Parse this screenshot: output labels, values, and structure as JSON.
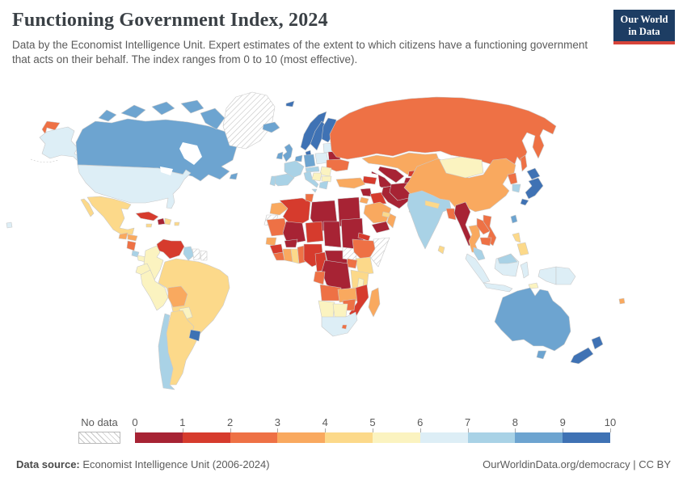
{
  "header": {
    "title": "Functioning Government Index, 2024",
    "subtitle": "Data by the Economist Intelligence Unit. Expert estimates of the extent to which citizens have a functioning government that acts on their behalf. The index ranges from 0 to 10 (most effective).",
    "logo": {
      "line1": "Our World",
      "line2": "in Data"
    }
  },
  "footer": {
    "source_label": "Data source:",
    "source_text": " Economist Intelligence Unit (2006-2024)",
    "right_text": "OurWorldinData.org/democracy | CC BY"
  },
  "chart_data": {
    "type": "heatmap",
    "subtype": "world-choropleth-map",
    "title": "Functioning Government Index, 2024",
    "value_range": [
      0,
      10
    ],
    "legend_position": "bottom",
    "no_data_label": "No data",
    "tick_labels": [
      "0",
      "1",
      "2",
      "3",
      "4",
      "5",
      "6",
      "7",
      "8",
      "9",
      "10"
    ],
    "color_scale": {
      "bins": [
        {
          "range": "0-1",
          "color": "#a72334"
        },
        {
          "range": "1-2",
          "color": "#d63b2d"
        },
        {
          "range": "2-3",
          "color": "#ee7145"
        },
        {
          "range": "3-4",
          "color": "#f9a95f"
        },
        {
          "range": "4-5",
          "color": "#fcd98a"
        },
        {
          "range": "5-6",
          "color": "#fbf3c0"
        },
        {
          "range": "6-7",
          "color": "#ddeef6"
        },
        {
          "range": "7-8",
          "color": "#a9d2e6"
        },
        {
          "range": "8-9",
          "color": "#6da4d0"
        },
        {
          "range": "9-10",
          "color": "#3f72b4"
        }
      ]
    },
    "regions": [
      {
        "id": "canada",
        "label": "Canada",
        "bin": "8-9"
      },
      {
        "id": "united-states",
        "label": "United States",
        "bin": "6-7"
      },
      {
        "id": "greenland",
        "label": "Greenland",
        "bin": "no-data"
      },
      {
        "id": "mexico",
        "label": "Mexico",
        "bin": "4-5"
      },
      {
        "id": "guatemala",
        "label": "Guatemala",
        "bin": "3-4"
      },
      {
        "id": "honduras",
        "label": "Honduras",
        "bin": "3-4"
      },
      {
        "id": "nicaragua",
        "label": "Nicaragua",
        "bin": "2-3"
      },
      {
        "id": "costa-rica",
        "label": "Costa Rica",
        "bin": "7-8"
      },
      {
        "id": "panama",
        "label": "Panama",
        "bin": "5-6"
      },
      {
        "id": "cuba",
        "label": "Cuba",
        "bin": "1-2"
      },
      {
        "id": "jamaica",
        "label": "Jamaica",
        "bin": "4-5"
      },
      {
        "id": "haiti",
        "label": "Haiti",
        "bin": "0-1"
      },
      {
        "id": "dominican-republic",
        "label": "Dominican Republic",
        "bin": "4-5"
      },
      {
        "id": "puerto-rico",
        "label": "Puerto Rico",
        "bin": "4-5"
      },
      {
        "id": "venezuela",
        "label": "Venezuela",
        "bin": "1-2"
      },
      {
        "id": "colombia",
        "label": "Colombia",
        "bin": "5-6"
      },
      {
        "id": "guyana",
        "label": "Guyana",
        "bin": "7-8"
      },
      {
        "id": "suriname",
        "label": "Suriname",
        "bin": "no-data"
      },
      {
        "id": "french-guiana",
        "label": "French Guiana",
        "bin": "no-data"
      },
      {
        "id": "ecuador",
        "label": "Ecuador",
        "bin": "5-6"
      },
      {
        "id": "peru",
        "label": "Peru",
        "bin": "5-6"
      },
      {
        "id": "brazil",
        "label": "Brazil",
        "bin": "4-5"
      },
      {
        "id": "bolivia",
        "label": "Bolivia",
        "bin": "3-4"
      },
      {
        "id": "paraguay",
        "label": "Paraguay",
        "bin": "5-6"
      },
      {
        "id": "uruguay",
        "label": "Uruguay",
        "bin": "9-10"
      },
      {
        "id": "argentina",
        "label": "Argentina",
        "bin": "4-5"
      },
      {
        "id": "chile",
        "label": "Chile",
        "bin": "7-8"
      },
      {
        "id": "iceland",
        "label": "Iceland",
        "bin": "8-9"
      },
      {
        "id": "norway",
        "label": "Norway",
        "bin": "9-10"
      },
      {
        "id": "sweden",
        "label": "Sweden",
        "bin": "9-10"
      },
      {
        "id": "finland",
        "label": "Finland",
        "bin": "9-10"
      },
      {
        "id": "svalbard",
        "label": "Svalbard",
        "bin": "9-10"
      },
      {
        "id": "denmark",
        "label": "Denmark",
        "bin": "9-10"
      },
      {
        "id": "united-kingdom",
        "label": "United Kingdom",
        "bin": "8-9"
      },
      {
        "id": "ireland",
        "label": "Ireland",
        "bin": "8-9"
      },
      {
        "id": "benelux",
        "label": "Netherlands / Belgium",
        "bin": "8-9"
      },
      {
        "id": "germany",
        "label": "Germany",
        "bin": "8-9"
      },
      {
        "id": "france",
        "label": "France",
        "bin": "7-8"
      },
      {
        "id": "spain",
        "label": "Spain",
        "bin": "7-8"
      },
      {
        "id": "portugal",
        "label": "Portugal",
        "bin": "7-8"
      },
      {
        "id": "alpine-central-europe",
        "label": "Switzerland / Austria",
        "bin": "7-8"
      },
      {
        "id": "italy",
        "label": "Italy",
        "bin": "7-8"
      },
      {
        "id": "poland",
        "label": "Poland",
        "bin": "6-7"
      },
      {
        "id": "baltics",
        "label": "Baltic states",
        "bin": "6-7"
      },
      {
        "id": "belarus",
        "label": "Belarus",
        "bin": "0-1"
      },
      {
        "id": "ukraine",
        "label": "Ukraine",
        "bin": "2-3"
      },
      {
        "id": "romania-moldova",
        "label": "Romania / Moldova",
        "bin": "5-6"
      },
      {
        "id": "balkans",
        "label": "Western Balkans",
        "bin": "5-6"
      },
      {
        "id": "bulgaria",
        "label": "Bulgaria",
        "bin": "5-6"
      },
      {
        "id": "greece",
        "label": "Greece",
        "bin": "7-8"
      },
      {
        "id": "russia",
        "label": "Russia",
        "bin": "2-3"
      },
      {
        "id": "kazakhstan",
        "label": "Kazakhstan",
        "bin": "3-4"
      },
      {
        "id": "uzbekistan",
        "label": "Uzbekistan",
        "bin": "0-1"
      },
      {
        "id": "turkmenistan",
        "label": "Turkmenistan",
        "bin": "0-1"
      },
      {
        "id": "kyrgyzstan",
        "label": "Kyrgyzstan",
        "bin": "1-2"
      },
      {
        "id": "tajikistan",
        "label": "Tajikistan",
        "bin": "0-1"
      },
      {
        "id": "afghanistan",
        "label": "Afghanistan",
        "bin": "0-1"
      },
      {
        "id": "pakistan",
        "label": "Pakistan",
        "bin": "4-5"
      },
      {
        "id": "caucasus",
        "label": "Caucasus states",
        "bin": "1-2"
      },
      {
        "id": "turkey",
        "label": "Turkey",
        "bin": "3-4"
      },
      {
        "id": "syria",
        "label": "Syria",
        "bin": "0-1"
      },
      {
        "id": "iraq",
        "label": "Iraq",
        "bin": "1-2"
      },
      {
        "id": "iran",
        "label": "Iran",
        "bin": "0-1"
      },
      {
        "id": "jordan",
        "label": "Jordan",
        "bin": "3-4"
      },
      {
        "id": "saudi-arabia",
        "label": "Saudi Arabia",
        "bin": "3-4"
      },
      {
        "id": "yemen",
        "label": "Yemen",
        "bin": "0-1"
      },
      {
        "id": "oman",
        "label": "Oman",
        "bin": "3-4"
      },
      {
        "id": "uae-qatar",
        "label": "UAE / Qatar",
        "bin": "4-5"
      },
      {
        "id": "china",
        "label": "China",
        "bin": "3-4"
      },
      {
        "id": "mongolia",
        "label": "Mongolia",
        "bin": "5-6"
      },
      {
        "id": "north-korea",
        "label": "North Korea",
        "bin": "2-3"
      },
      {
        "id": "south-korea",
        "label": "South Korea",
        "bin": "7-8"
      },
      {
        "id": "japan",
        "label": "Japan",
        "bin": "9-10"
      },
      {
        "id": "taiwan",
        "label": "Taiwan",
        "bin": "8-9"
      },
      {
        "id": "india",
        "label": "India",
        "bin": "7-8"
      },
      {
        "id": "nepal",
        "label": "Nepal",
        "bin": "4-5"
      },
      {
        "id": "bangladesh",
        "label": "Bangladesh",
        "bin": "2-3"
      },
      {
        "id": "sri-lanka",
        "label": "Sri Lanka",
        "bin": "4-5"
      },
      {
        "id": "myanmar",
        "label": "Myanmar",
        "bin": "0-1"
      },
      {
        "id": "thailand",
        "label": "Thailand",
        "bin": "3-4"
      },
      {
        "id": "laos",
        "label": "Laos",
        "bin": "2-3"
      },
      {
        "id": "vietnam",
        "label": "Vietnam",
        "bin": "2-3"
      },
      {
        "id": "cambodia",
        "label": "Cambodia",
        "bin": "2-3"
      },
      {
        "id": "malaysia",
        "label": "Malaysia",
        "bin": "7-8"
      },
      {
        "id": "indonesia",
        "label": "Indonesia",
        "bin": "6-7"
      },
      {
        "id": "timor-leste",
        "label": "Timor-Leste",
        "bin": "5-6"
      },
      {
        "id": "philippines",
        "label": "Philippines",
        "bin": "4-5"
      },
      {
        "id": "papua-new-guinea",
        "label": "Papua New Guinea",
        "bin": "6-7"
      },
      {
        "id": "australia",
        "label": "Australia",
        "bin": "8-9"
      },
      {
        "id": "new-zealand",
        "label": "New Zealand",
        "bin": "9-10"
      },
      {
        "id": "fiji",
        "label": "Fiji",
        "bin": "3-4"
      },
      {
        "id": "morocco",
        "label": "Morocco",
        "bin": "3-4"
      },
      {
        "id": "western-sahara",
        "label": "Western Sahara",
        "bin": "no-data"
      },
      {
        "id": "algeria",
        "label": "Algeria",
        "bin": "1-2"
      },
      {
        "id": "tunisia",
        "label": "Tunisia",
        "bin": "2-3"
      },
      {
        "id": "libya",
        "label": "Libya",
        "bin": "0-1"
      },
      {
        "id": "egypt",
        "label": "Egypt",
        "bin": "0-1"
      },
      {
        "id": "mauritania",
        "label": "Mauritania",
        "bin": "2-3"
      },
      {
        "id": "mali",
        "label": "Mali",
        "bin": "0-1"
      },
      {
        "id": "niger",
        "label": "Niger",
        "bin": "1-2"
      },
      {
        "id": "chad",
        "label": "Chad",
        "bin": "0-1"
      },
      {
        "id": "sudan",
        "label": "Sudan",
        "bin": "0-1"
      },
      {
        "id": "eritrea",
        "label": "Eritrea",
        "bin": "1-2"
      },
      {
        "id": "senegal",
        "label": "Senegal",
        "bin": "3-4"
      },
      {
        "id": "guinea",
        "label": "Guinea",
        "bin": "1-2"
      },
      {
        "id": "sierra-leone-liberia",
        "label": "Sierra Leone / Liberia",
        "bin": "2-3"
      },
      {
        "id": "ivory-coast",
        "label": "Côte d'Ivoire",
        "bin": "3-4"
      },
      {
        "id": "burkina-faso",
        "label": "Burkina Faso",
        "bin": "0-1"
      },
      {
        "id": "ghana",
        "label": "Ghana",
        "bin": "4-5"
      },
      {
        "id": "togo-benin",
        "label": "Togo / Benin",
        "bin": "2-3"
      },
      {
        "id": "nigeria",
        "label": "Nigeria",
        "bin": "1-2"
      },
      {
        "id": "cameroon",
        "label": "Cameroon",
        "bin": "1-2"
      },
      {
        "id": "central-african-republic",
        "label": "Central African Republic",
        "bin": "0-1"
      },
      {
        "id": "south-sudan",
        "label": "South Sudan",
        "bin": "no-data"
      },
      {
        "id": "ethiopia",
        "label": "Ethiopia",
        "bin": "2-3"
      },
      {
        "id": "somalia",
        "label": "Somalia",
        "bin": "no-data"
      },
      {
        "id": "kenya",
        "label": "Kenya",
        "bin": "4-5"
      },
      {
        "id": "uganda",
        "label": "Uganda",
        "bin": "2-3"
      },
      {
        "id": "democratic-republic-of-congo",
        "label": "Democratic Republic of Congo",
        "bin": "0-1"
      },
      {
        "id": "congo-gabon",
        "label": "Congo / Gabon",
        "bin": "2-3"
      },
      {
        "id": "tanzania",
        "label": "Tanzania",
        "bin": "4-5"
      },
      {
        "id": "angola",
        "label": "Angola",
        "bin": "2-3"
      },
      {
        "id": "zambia",
        "label": "Zambia",
        "bin": "3-4"
      },
      {
        "id": "malawi",
        "label": "Malawi",
        "bin": "5-6"
      },
      {
        "id": "mozambique",
        "label": "Mozambique",
        "bin": "1-2"
      },
      {
        "id": "zimbabwe",
        "label": "Zimbabwe",
        "bin": "2-3"
      },
      {
        "id": "madagascar",
        "label": "Madagascar",
        "bin": "3-4"
      },
      {
        "id": "namibia",
        "label": "Namibia",
        "bin": "5-6"
      },
      {
        "id": "botswana",
        "label": "Botswana",
        "bin": "5-6"
      },
      {
        "id": "south-africa",
        "label": "South Africa",
        "bin": "6-7"
      },
      {
        "id": "lesotho",
        "label": "Lesotho",
        "bin": "2-3"
      }
    ]
  },
  "map_style": {
    "ocean_color": "#ffffff",
    "border_color": "#c9c9c9",
    "no_data_pattern": "diagonal-hatch",
    "hatch_line_color": "#c9c9c9"
  }
}
